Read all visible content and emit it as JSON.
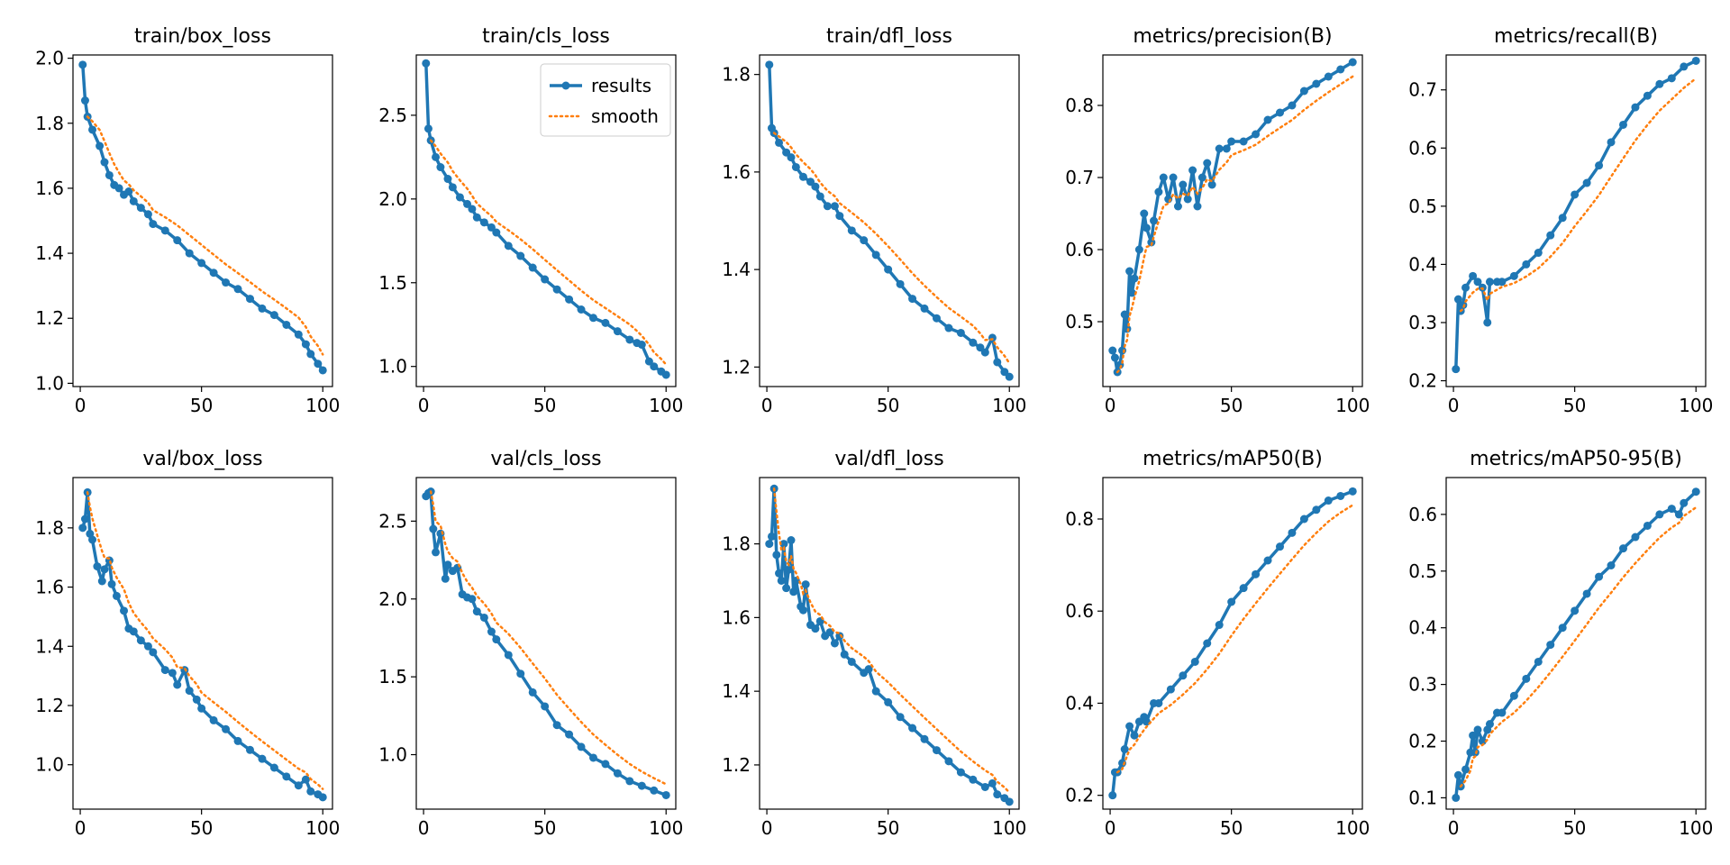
{
  "figure": {
    "legend": {
      "results_label": "results",
      "smooth_label": "smooth",
      "placement": "upper-right of train/cls_loss panel"
    },
    "colors": {
      "results": "#1f77b4",
      "smooth": "#ff7f0e",
      "axes": "#000000",
      "background": "#ffffff"
    }
  },
  "chart_data": [
    {
      "type": "line",
      "title": "train/box_loss",
      "x": [
        1,
        2,
        3,
        5,
        8,
        10,
        12,
        14,
        16,
        18,
        20,
        22,
        25,
        28,
        30,
        35,
        40,
        45,
        50,
        55,
        60,
        65,
        70,
        75,
        80,
        85,
        90,
        93,
        95,
        98,
        100
      ],
      "series": [
        {
          "name": "results",
          "values": [
            1.98,
            1.87,
            1.82,
            1.78,
            1.73,
            1.68,
            1.64,
            1.61,
            1.6,
            1.58,
            1.59,
            1.56,
            1.54,
            1.52,
            1.49,
            1.47,
            1.44,
            1.4,
            1.37,
            1.34,
            1.31,
            1.29,
            1.26,
            1.23,
            1.21,
            1.18,
            1.15,
            1.12,
            1.09,
            1.06,
            1.04
          ]
        }
      ],
      "smooth_start": 2,
      "xlim": [
        -3,
        104
      ],
      "ylim": [
        0.99,
        2.01
      ],
      "xticks": [
        0,
        50,
        100
      ],
      "yticks": [
        1.0,
        1.2,
        1.4,
        1.6,
        1.8,
        2.0
      ],
      "ytick_decimals": 1
    },
    {
      "type": "line",
      "title": "train/cls_loss",
      "x": [
        1,
        2,
        3,
        5,
        7,
        10,
        12,
        15,
        18,
        20,
        22,
        25,
        28,
        30,
        35,
        40,
        45,
        50,
        55,
        60,
        65,
        70,
        75,
        80,
        85,
        88,
        90,
        93,
        95,
        98,
        100
      ],
      "series": [
        {
          "name": "results",
          "values": [
            2.81,
            2.42,
            2.35,
            2.25,
            2.19,
            2.12,
            2.07,
            2.01,
            1.97,
            1.94,
            1.89,
            1.86,
            1.83,
            1.8,
            1.72,
            1.66,
            1.59,
            1.52,
            1.46,
            1.4,
            1.34,
            1.29,
            1.26,
            1.21,
            1.16,
            1.14,
            1.13,
            1.03,
            1.0,
            0.97,
            0.95
          ]
        }
      ],
      "smooth_start": 2,
      "xlim": [
        -3,
        104
      ],
      "ylim": [
        0.88,
        2.86
      ],
      "xticks": [
        0,
        50,
        100
      ],
      "yticks": [
        1.0,
        1.5,
        2.0,
        2.5
      ],
      "ytick_decimals": 1,
      "legend": true
    },
    {
      "type": "line",
      "title": "train/dfl_loss",
      "x": [
        1,
        2,
        3,
        5,
        8,
        10,
        12,
        15,
        18,
        20,
        22,
        25,
        28,
        30,
        35,
        40,
        45,
        50,
        55,
        60,
        65,
        70,
        75,
        80,
        85,
        88,
        90,
        93,
        95,
        98,
        100
      ],
      "series": [
        {
          "name": "results",
          "values": [
            1.82,
            1.69,
            1.68,
            1.66,
            1.64,
            1.63,
            1.61,
            1.59,
            1.58,
            1.57,
            1.55,
            1.53,
            1.53,
            1.51,
            1.48,
            1.46,
            1.43,
            1.4,
            1.37,
            1.34,
            1.32,
            1.3,
            1.28,
            1.27,
            1.25,
            1.24,
            1.23,
            1.26,
            1.21,
            1.19,
            1.18
          ]
        }
      ],
      "smooth_start": 2,
      "xlim": [
        -3,
        104
      ],
      "ylim": [
        1.16,
        1.84
      ],
      "xticks": [
        0,
        50,
        100
      ],
      "yticks": [
        1.2,
        1.4,
        1.6,
        1.8
      ],
      "ytick_decimals": 1
    },
    {
      "type": "line",
      "title": "metrics/precision(B)",
      "x": [
        1,
        2,
        3,
        4,
        5,
        6,
        7,
        8,
        9,
        10,
        12,
        14,
        15,
        17,
        18,
        20,
        22,
        24,
        26,
        28,
        30,
        32,
        34,
        36,
        38,
        40,
        42,
        45,
        48,
        50,
        55,
        60,
        65,
        70,
        75,
        80,
        85,
        90,
        95,
        100
      ],
      "series": [
        {
          "name": "results",
          "values": [
            0.46,
            0.45,
            0.43,
            0.44,
            0.46,
            0.51,
            0.49,
            0.57,
            0.54,
            0.56,
            0.6,
            0.65,
            0.63,
            0.61,
            0.64,
            0.68,
            0.7,
            0.67,
            0.7,
            0.66,
            0.69,
            0.67,
            0.71,
            0.66,
            0.7,
            0.72,
            0.69,
            0.74,
            0.74,
            0.75,
            0.75,
            0.76,
            0.78,
            0.79,
            0.8,
            0.82,
            0.83,
            0.84,
            0.85,
            0.86
          ]
        }
      ],
      "smooth_start": 2,
      "xlim": [
        -3,
        104
      ],
      "ylim": [
        0.41,
        0.87
      ],
      "xticks": [
        0,
        50,
        100
      ],
      "yticks": [
        0.5,
        0.6,
        0.7,
        0.8
      ],
      "ytick_decimals": 1
    },
    {
      "type": "line",
      "title": "metrics/recall(B)",
      "x": [
        1,
        2,
        3,
        4,
        5,
        8,
        10,
        12,
        14,
        15,
        18,
        20,
        25,
        30,
        35,
        40,
        45,
        50,
        55,
        60,
        65,
        70,
        75,
        80,
        85,
        90,
        95,
        100
      ],
      "series": [
        {
          "name": "results",
          "values": [
            0.22,
            0.34,
            0.32,
            0.33,
            0.36,
            0.38,
            0.37,
            0.36,
            0.3,
            0.37,
            0.37,
            0.37,
            0.38,
            0.4,
            0.42,
            0.45,
            0.48,
            0.52,
            0.54,
            0.57,
            0.61,
            0.64,
            0.67,
            0.69,
            0.71,
            0.72,
            0.74,
            0.75
          ]
        }
      ],
      "smooth_start": 2,
      "xlim": [
        -3,
        104
      ],
      "ylim": [
        0.19,
        0.76
      ],
      "xticks": [
        0,
        50,
        100
      ],
      "yticks": [
        0.2,
        0.3,
        0.4,
        0.5,
        0.6,
        0.7
      ],
      "ytick_decimals": 1
    },
    {
      "type": "line",
      "title": "val/box_loss",
      "x": [
        1,
        2,
        3,
        4,
        5,
        7,
        9,
        10,
        12,
        13,
        15,
        18,
        20,
        22,
        25,
        28,
        30,
        35,
        38,
        40,
        43,
        45,
        48,
        50,
        55,
        60,
        65,
        70,
        75,
        80,
        85,
        90,
        93,
        95,
        98,
        100
      ],
      "series": [
        {
          "name": "results",
          "values": [
            1.8,
            1.83,
            1.92,
            1.78,
            1.76,
            1.67,
            1.62,
            1.66,
            1.69,
            1.61,
            1.57,
            1.52,
            1.46,
            1.45,
            1.42,
            1.4,
            1.38,
            1.32,
            1.31,
            1.27,
            1.32,
            1.25,
            1.22,
            1.19,
            1.15,
            1.12,
            1.08,
            1.05,
            1.02,
            0.99,
            0.96,
            0.93,
            0.95,
            0.91,
            0.9,
            0.89
          ]
        }
      ],
      "smooth_start": 2,
      "xlim": [
        -3,
        104
      ],
      "ylim": [
        0.85,
        1.97
      ],
      "xticks": [
        0,
        50,
        100
      ],
      "yticks": [
        1.0,
        1.2,
        1.4,
        1.6,
        1.8
      ],
      "ytick_decimals": 1
    },
    {
      "type": "line",
      "title": "val/cls_loss",
      "x": [
        1,
        2,
        3,
        4,
        5,
        7,
        9,
        10,
        12,
        14,
        16,
        18,
        20,
        22,
        25,
        28,
        30,
        35,
        40,
        45,
        50,
        55,
        60,
        65,
        70,
        75,
        80,
        85,
        90,
        95,
        100
      ],
      "series": [
        {
          "name": "results",
          "values": [
            2.66,
            2.68,
            2.69,
            2.45,
            2.3,
            2.42,
            2.13,
            2.22,
            2.18,
            2.2,
            2.03,
            2.01,
            2.0,
            1.92,
            1.88,
            1.79,
            1.74,
            1.64,
            1.52,
            1.4,
            1.31,
            1.19,
            1.13,
            1.05,
            0.98,
            0.94,
            0.88,
            0.83,
            0.8,
            0.77,
            0.74
          ]
        }
      ],
      "smooth_start": 2,
      "xlim": [
        -3,
        104
      ],
      "ylim": [
        0.65,
        2.78
      ],
      "xticks": [
        0,
        50,
        100
      ],
      "yticks": [
        1.0,
        1.5,
        2.0,
        2.5
      ],
      "ytick_decimals": 1
    },
    {
      "type": "line",
      "title": "val/dfl_loss",
      "x": [
        1,
        2,
        3,
        4,
        5,
        6,
        7,
        8,
        9,
        10,
        11,
        12,
        14,
        15,
        16,
        18,
        20,
        22,
        24,
        26,
        28,
        30,
        32,
        35,
        40,
        42,
        45,
        50,
        55,
        60,
        65,
        70,
        75,
        80,
        85,
        90,
        93,
        95,
        98,
        100
      ],
      "series": [
        {
          "name": "results",
          "values": [
            1.8,
            1.82,
            1.95,
            1.77,
            1.72,
            1.7,
            1.8,
            1.68,
            1.73,
            1.81,
            1.67,
            1.7,
            1.63,
            1.62,
            1.69,
            1.58,
            1.57,
            1.59,
            1.55,
            1.56,
            1.53,
            1.55,
            1.5,
            1.48,
            1.45,
            1.46,
            1.4,
            1.37,
            1.33,
            1.3,
            1.27,
            1.24,
            1.21,
            1.18,
            1.16,
            1.14,
            1.15,
            1.12,
            1.11,
            1.1
          ]
        }
      ],
      "smooth_start": 2,
      "xlim": [
        -3,
        104
      ],
      "ylim": [
        1.08,
        1.98
      ],
      "xticks": [
        0,
        50,
        100
      ],
      "yticks": [
        1.2,
        1.4,
        1.6,
        1.8
      ],
      "ytick_decimals": 1
    },
    {
      "type": "line",
      "title": "metrics/mAP50(B)",
      "x": [
        1,
        2,
        3,
        5,
        6,
        8,
        10,
        12,
        14,
        15,
        18,
        20,
        25,
        30,
        35,
        40,
        45,
        50,
        55,
        60,
        65,
        70,
        75,
        80,
        85,
        90,
        95,
        100
      ],
      "series": [
        {
          "name": "results",
          "values": [
            0.2,
            0.25,
            0.25,
            0.27,
            0.3,
            0.35,
            0.33,
            0.36,
            0.37,
            0.36,
            0.4,
            0.4,
            0.43,
            0.46,
            0.49,
            0.53,
            0.57,
            0.62,
            0.65,
            0.68,
            0.71,
            0.74,
            0.77,
            0.8,
            0.82,
            0.84,
            0.85,
            0.86
          ]
        }
      ],
      "smooth_start": 2,
      "xlim": [
        -3,
        104
      ],
      "ylim": [
        0.17,
        0.89
      ],
      "xticks": [
        0,
        50,
        100
      ],
      "yticks": [
        0.2,
        0.4,
        0.6,
        0.8
      ],
      "ytick_decimals": 1
    },
    {
      "type": "line",
      "title": "metrics/mAP50-95(B)",
      "x": [
        1,
        2,
        3,
        5,
        7,
        8,
        9,
        10,
        12,
        14,
        15,
        18,
        20,
        25,
        30,
        35,
        40,
        45,
        50,
        55,
        60,
        65,
        70,
        75,
        80,
        85,
        90,
        93,
        95,
        100
      ],
      "series": [
        {
          "name": "results",
          "values": [
            0.1,
            0.14,
            0.12,
            0.15,
            0.18,
            0.21,
            0.18,
            0.22,
            0.2,
            0.22,
            0.23,
            0.25,
            0.25,
            0.28,
            0.31,
            0.34,
            0.37,
            0.4,
            0.43,
            0.46,
            0.49,
            0.51,
            0.54,
            0.56,
            0.58,
            0.6,
            0.61,
            0.6,
            0.62,
            0.64
          ]
        }
      ],
      "smooth_start": 2,
      "xlim": [
        -3,
        104
      ],
      "ylim": [
        0.08,
        0.665
      ],
      "xticks": [
        0,
        50,
        100
      ],
      "yticks": [
        0.1,
        0.2,
        0.3,
        0.4,
        0.5,
        0.6
      ],
      "ytick_decimals": 1
    }
  ]
}
